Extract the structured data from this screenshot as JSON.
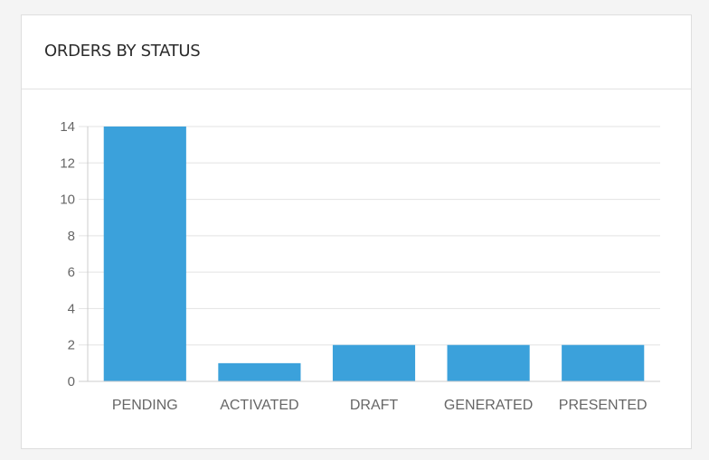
{
  "card": {
    "title": "ORDERS BY STATUS"
  },
  "chart_data": {
    "type": "bar",
    "categories": [
      "PENDING",
      "ACTIVATED",
      "DRAFT",
      "GENERATED",
      "PRESENTED"
    ],
    "values": [
      14,
      1,
      2,
      2,
      2
    ],
    "title": "ORDERS BY STATUS",
    "xlabel": "",
    "ylabel": "",
    "ylim": [
      0,
      14
    ],
    "yticks": [
      0,
      2,
      4,
      6,
      8,
      10,
      12,
      14
    ],
    "grid": true,
    "legend": "none",
    "colors": {
      "bar": "#3ba1db",
      "grid": "#e3e3e3",
      "axis": "#cccccc",
      "tick_text": "#666666"
    }
  }
}
